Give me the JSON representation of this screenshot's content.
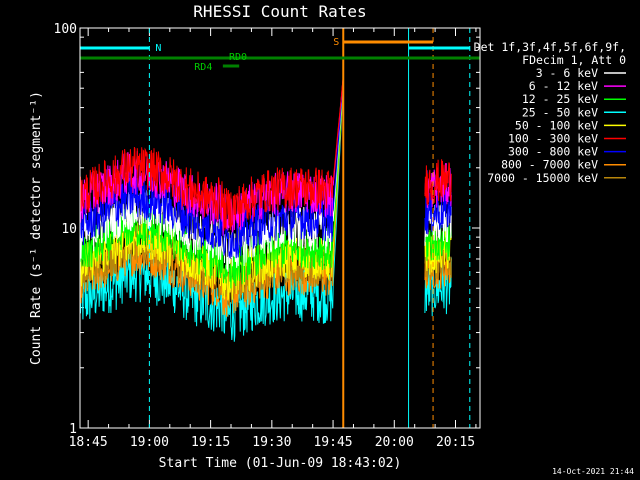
{
  "chart_data": {
    "type": "line",
    "title": "RHESSI Count Rates",
    "xlabel": "Start Time (01-Jun-09 18:43:02)",
    "ylabel": "Count Rate (s⁻¹ detector segment⁻¹)",
    "yscale": "log",
    "ylim": [
      1,
      100
    ],
    "xlim_minutes_after_1843": [
      0,
      98
    ],
    "x_ticks": [
      {
        "label": "18:45",
        "min": 2
      },
      {
        "label": "19:00",
        "min": 17
      },
      {
        "label": "19:15",
        "min": 32
      },
      {
        "label": "19:30",
        "min": 47
      },
      {
        "label": "19:45",
        "min": 62
      },
      {
        "label": "20:00",
        "min": 77
      },
      {
        "label": "20:15",
        "min": 92
      }
    ],
    "y_ticks": [
      {
        "label": "1",
        "value": 1
      },
      {
        "label": "10",
        "value": 10
      },
      {
        "label": "100",
        "value": 100
      }
    ],
    "legend_header": [
      "Det 1f,3f,4f,5f,6f,9f,",
      "FDecim 1, Att 0"
    ],
    "legend_position": "right",
    "series": [
      {
        "name": "3 - 6 keV",
        "color": "#ffffff",
        "level": 10.5
      },
      {
        "name": "6 - 12 keV",
        "color": "#ff00ff",
        "level": 16.0
      },
      {
        "name": "12 - 25 keV",
        "color": "#00ff00",
        "level": 8.6
      },
      {
        "name": "25 - 50 keV",
        "color": "#00ffff",
        "level": 5.0
      },
      {
        "name": "50 - 100 keV",
        "color": "#ffff00",
        "level": 7.6
      },
      {
        "name": "100 - 300 keV",
        "color": "#ff0000",
        "level": 17.0
      },
      {
        "name": "300 - 800 keV",
        "color": "#0000ff",
        "level": 12.0
      },
      {
        "name": "800 - 7000 keV",
        "color": "#ff8c00",
        "level": 6.3
      },
      {
        "name": "7000 - 15000 keV",
        "color": "#b8860b",
        "level": 7.0
      }
    ],
    "data_segments_minutes": [
      [
        0,
        64.5
      ],
      [
        84.5,
        91
      ]
    ],
    "annotations": {
      "saa_label": "N",
      "night_label": "S",
      "rd0_label": "RD0",
      "rd4_label": "RD4"
    },
    "timestamp": "14-Oct-2021 21:44"
  }
}
